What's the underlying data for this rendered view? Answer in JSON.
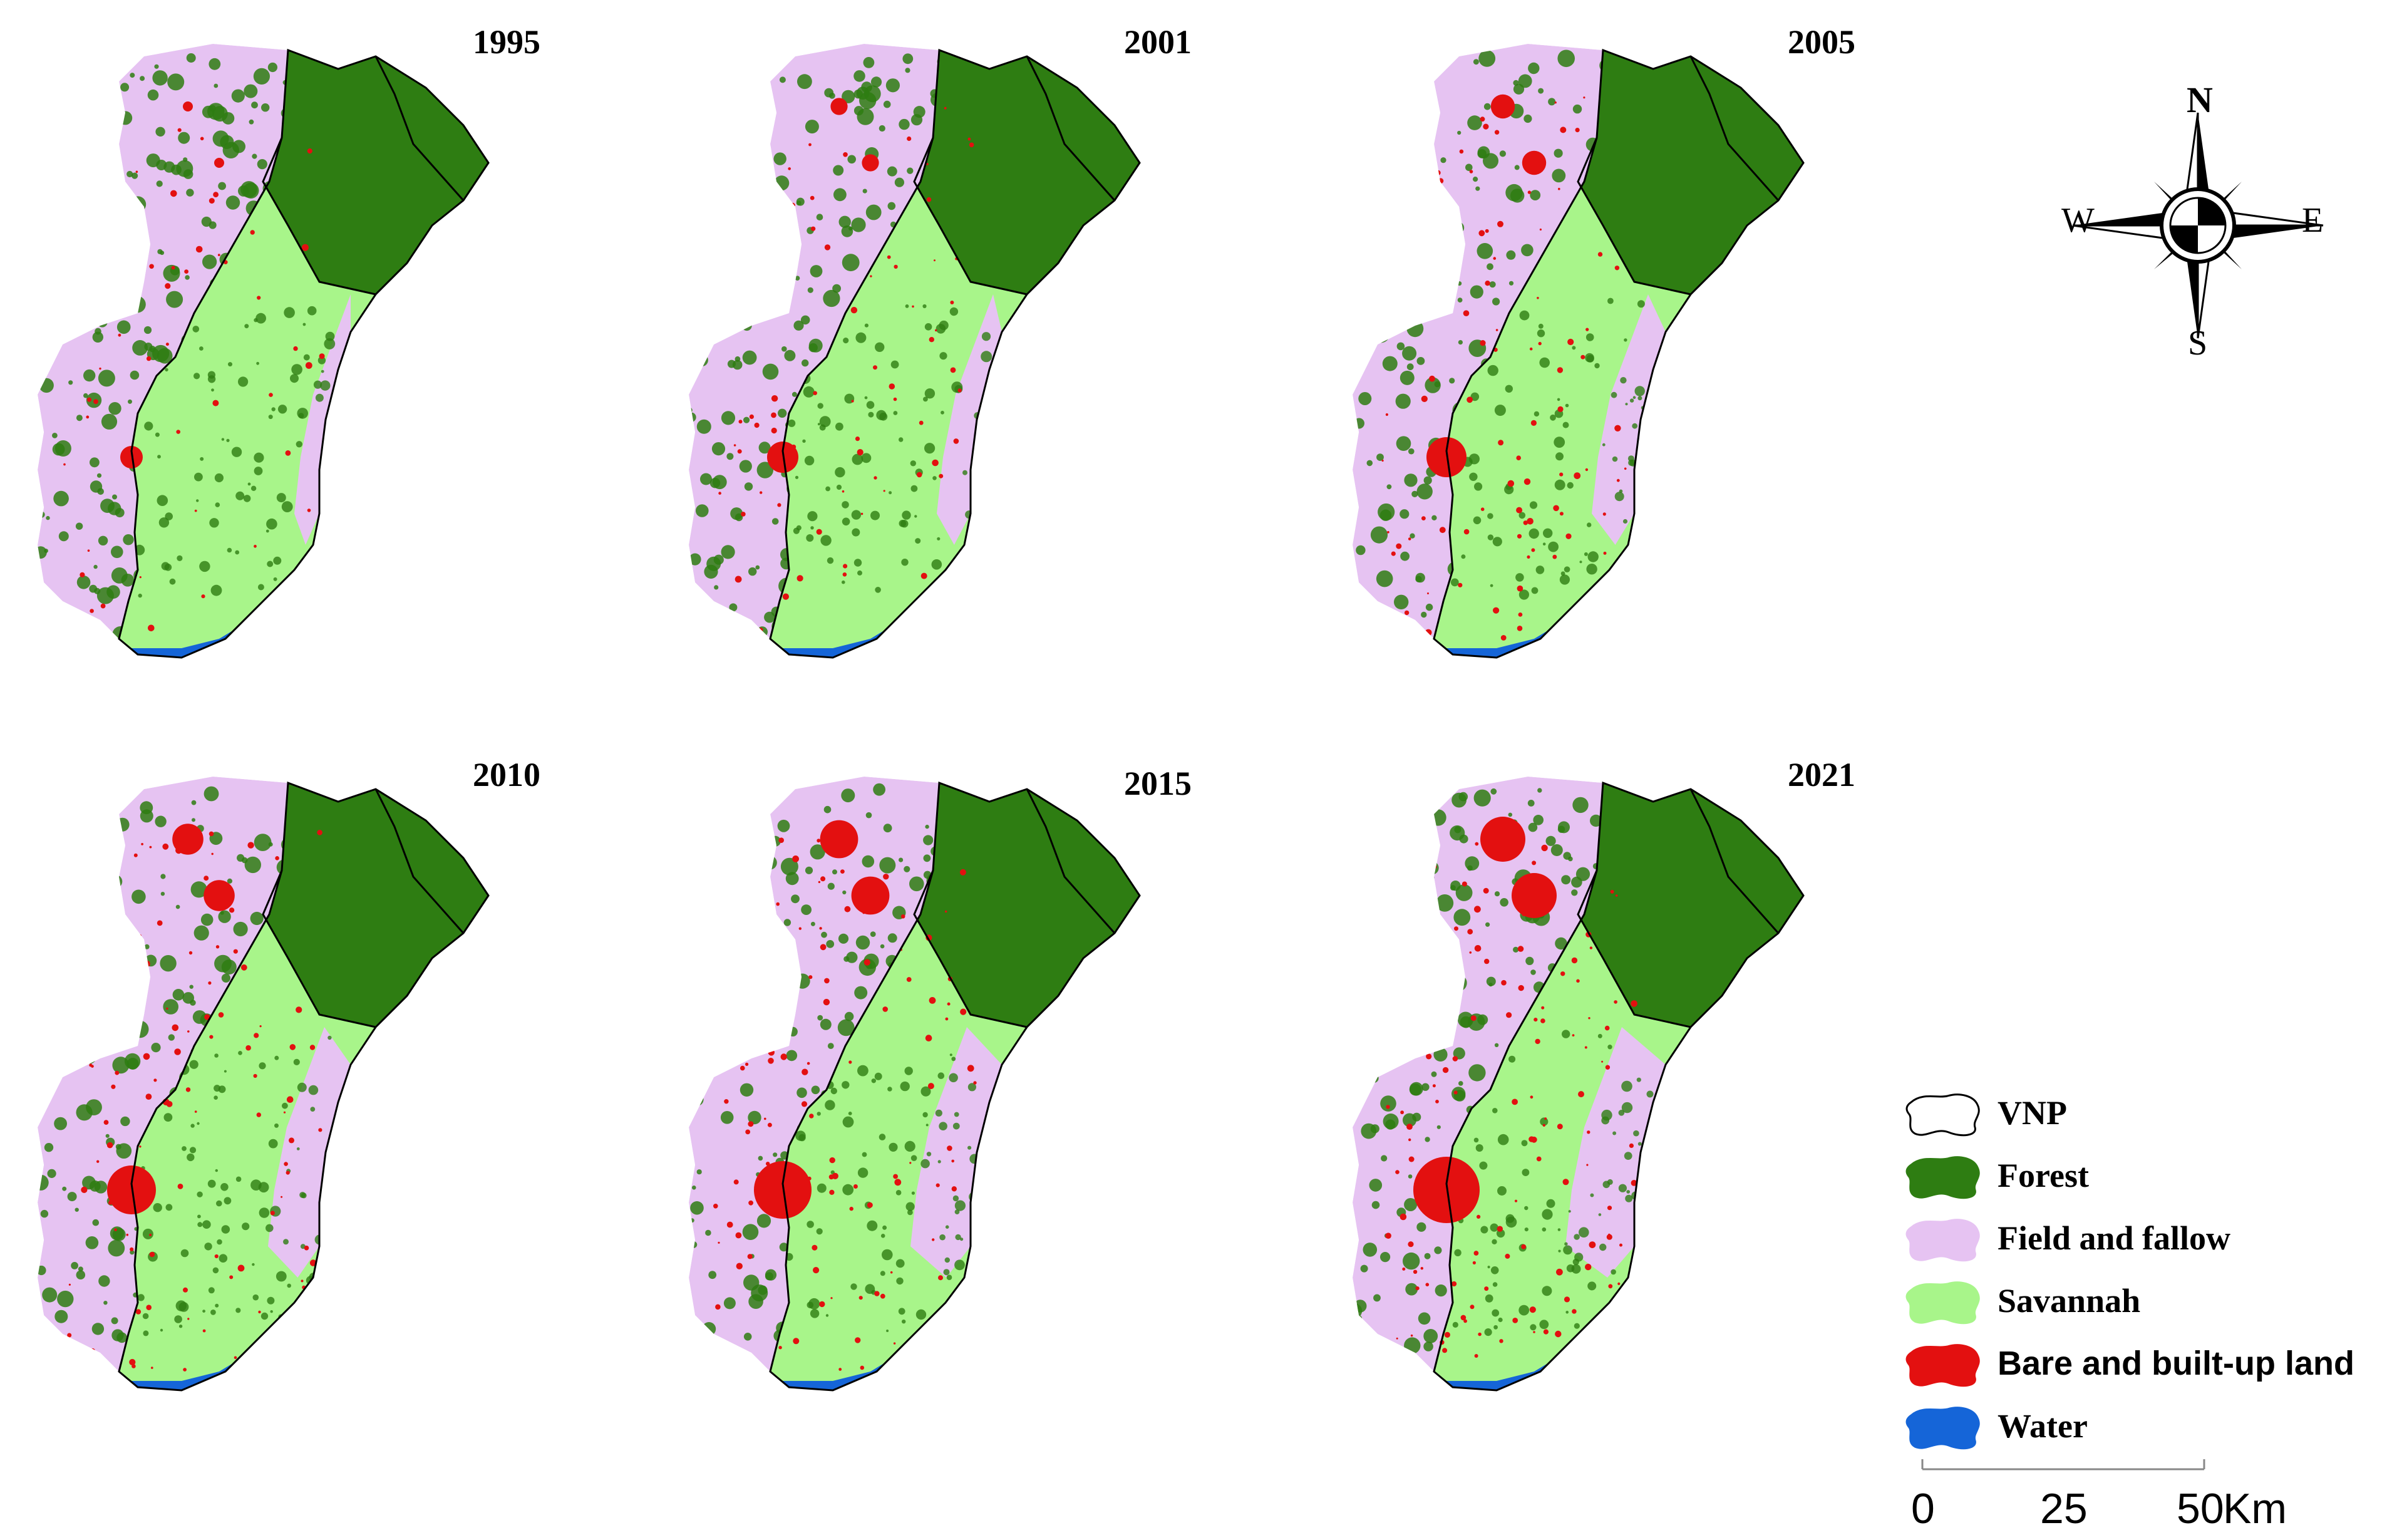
{
  "panels": [
    {
      "year": "1995"
    },
    {
      "year": "2001"
    },
    {
      "year": "2005"
    },
    {
      "year": "2010"
    },
    {
      "year": "2015"
    },
    {
      "year": "2021"
    }
  ],
  "compass": {
    "north": "N",
    "south": "S",
    "east": "E",
    "west": "W"
  },
  "legend": {
    "items": [
      {
        "label": "VNP",
        "color": "#ffffff"
      },
      {
        "label": "Forest",
        "color": "#2e7d12"
      },
      {
        "label": "Field and fallow",
        "color": "#e6c3f2"
      },
      {
        "label": "Savannah",
        "color": "#a8f58a"
      },
      {
        "label": "Bare and built-up land",
        "color": "#e31010"
      },
      {
        "label": "Water",
        "color": "#1565d8"
      }
    ]
  },
  "scale_bar": {
    "ticks": [
      "0",
      "25",
      "50"
    ],
    "unit": "Km"
  }
}
